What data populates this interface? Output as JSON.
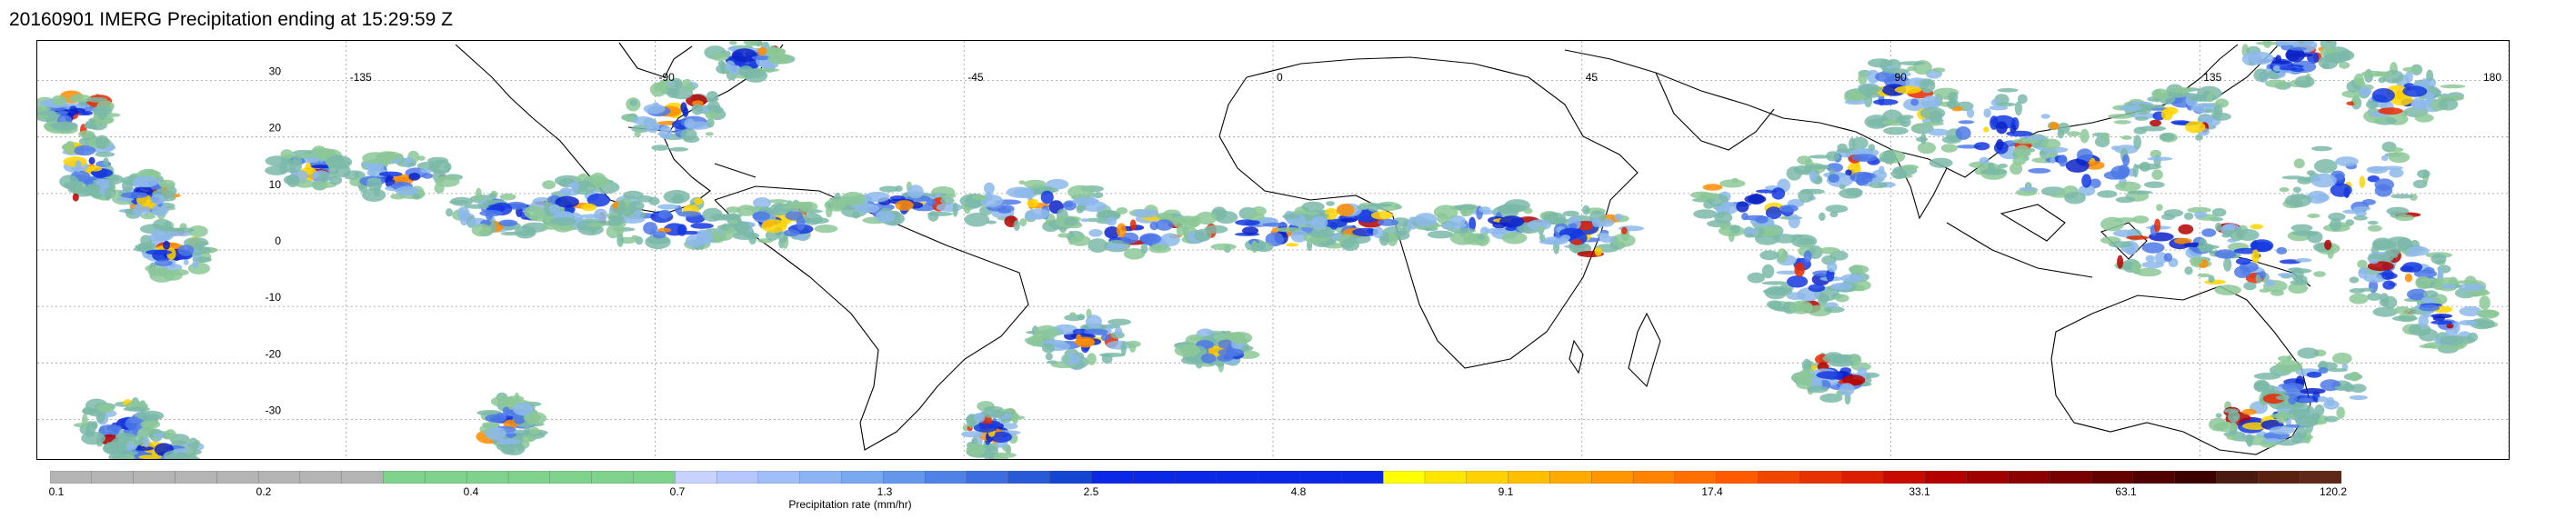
{
  "title": "20160901 IMERG Precipitation ending at 15:29:59 Z",
  "map": {
    "lon_labels": [
      "-135",
      "-90",
      "-45",
      "0",
      "45",
      "90",
      "135",
      "180"
    ],
    "lat_labels": [
      "30",
      "20",
      "10",
      "0",
      "-10",
      "-20",
      "-30"
    ],
    "grid": true
  },
  "colorbar": {
    "title": "Precipitation rate (mm/hr)",
    "tick_labels": [
      "0.1",
      "0.2",
      "0.4",
      "0.7",
      "1.3",
      "2.5",
      "4.8",
      "9.1",
      "17.4",
      "33.1",
      "63.1",
      "120.2"
    ],
    "colors": [
      "#b4b4b4",
      "#b4b4b4",
      "#b4b4b4",
      "#b4b4b4",
      "#b4b4b4",
      "#b4b4b4",
      "#b4b4b4",
      "#b4b4b4",
      "#b4b4b4",
      "#b4b4b4",
      "#b4b4b4",
      "#b4b4b4",
      "#b4b4b4",
      "#b4b4b4",
      "#b4b4b4",
      "#b4b4b4",
      "#b4b4b4",
      "#b4b4b4",
      "#b4b4b4",
      "#b4b4b4",
      "#b4b4b4",
      "#b4b4b4",
      "#b4b4b4",
      "#b4b4b4",
      "#b4b4b4",
      "#b4b4b4",
      "#b4b4b4",
      "#b4b4b4",
      "#b4b4b4",
      "#b4b4b4",
      "#b4b4b4",
      "#b4b4b4",
      "#b4b4b4",
      "#b4b4b4",
      "#b4b4b4",
      "#b4b4b4",
      "#b4b4b4",
      "#b4b4b4",
      "#b4b4b4",
      "#b4b4b4",
      "#b4b4b4",
      "#b4b4b4",
      "#b4b4b4",
      "#b4b4b4",
      "#b4b4b4",
      "#b4b4b4",
      "#b4b4b4",
      "#b4b4b4",
      "#b4b4b4",
      "#b4b4b4"
    ]
  }
}
